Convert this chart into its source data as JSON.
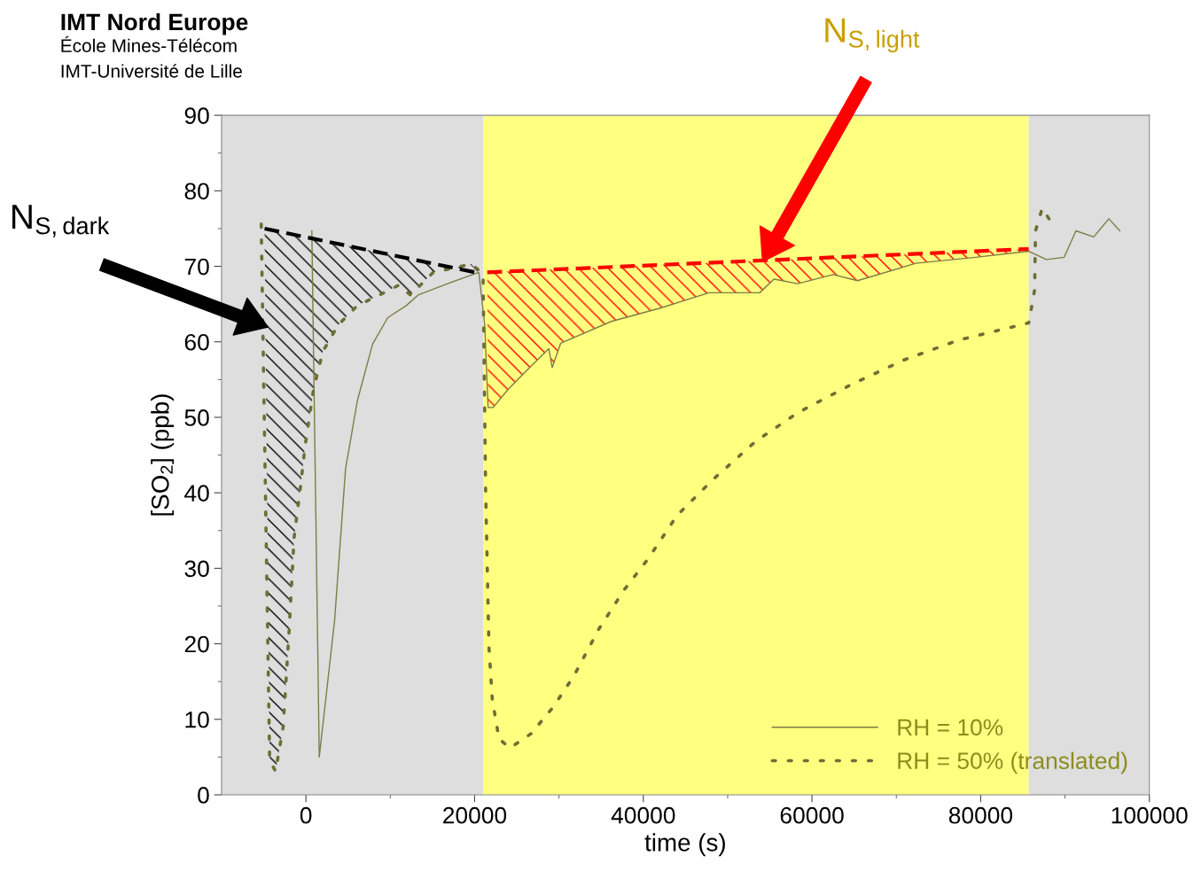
{
  "chart_data": {
    "type": "line",
    "xlabel": "time (s)",
    "ylabel": "[SO$_{2}$] (ppb)",
    "xlim": [
      -10000,
      100000
    ],
    "xticks": [
      0,
      20000,
      40000,
      60000,
      80000,
      100000
    ],
    "ylim": [
      0,
      90
    ],
    "yticks": [
      0,
      10,
      20,
      30,
      40,
      50,
      60,
      70,
      80,
      90
    ],
    "grid": false,
    "legend": "bottom right",
    "series": [
      {
        "name": "RH = 10%",
        "color": "#7d7d45",
        "line_style": "solid",
        "x": [
          700,
          1580,
          3400,
          4700,
          6100,
          7900,
          9700,
          11900,
          13300,
          16800,
          20500,
          21200,
          21600,
          22200,
          23900,
          26000,
          28800,
          29200,
          30200,
          36200,
          41800,
          47800,
          53800,
          55500,
          58300,
          62500,
          65400,
          72300,
          79400,
          85700,
          87800,
          89900,
          91300,
          93400,
          95200,
          96500
        ],
        "values": [
          74.7,
          5.0,
          23.1,
          43.2,
          52.2,
          59.7,
          63.2,
          64.8,
          66.2,
          67.7,
          69.2,
          62.2,
          51.3,
          51.3,
          53.6,
          56.0,
          59.1,
          56.6,
          59.8,
          62.7,
          64.4,
          66.5,
          66.5,
          68.3,
          67.7,
          68.9,
          68.1,
          70.4,
          71.2,
          72.0,
          70.9,
          71.2,
          74.7,
          73.9,
          76.3,
          74.7
        ]
      },
      {
        "name": "RH = 50% (translated)",
        "color": "#6e6e35",
        "line_style": "dotted",
        "x": [
          -5300,
          -4300,
          -3600,
          -2700,
          -2000,
          -1400,
          -600,
          -100,
          900,
          2000,
          3800,
          6100,
          8700,
          11000,
          12400,
          15100,
          19600,
          21000,
          21300,
          21700,
          22100,
          22900,
          24200,
          26700,
          29300,
          31800,
          34700,
          37700,
          40600,
          44000,
          48200,
          53300,
          58300,
          64600,
          70900,
          77300,
          85700,
          86400,
          86500,
          87300,
          88100
        ],
        "values": [
          75.6,
          4.6,
          3.1,
          9.0,
          21.6,
          34.1,
          41.2,
          46.2,
          53.7,
          58.7,
          62.2,
          64.8,
          66.2,
          67.5,
          66.2,
          69.2,
          70.3,
          69.0,
          40.7,
          19.6,
          12.6,
          7.4,
          6.2,
          8.1,
          11.6,
          15.8,
          21.9,
          27.1,
          31.3,
          37.0,
          41.7,
          46.8,
          50.6,
          54.3,
          57.6,
          60.2,
          62.5,
          66.9,
          74.7,
          77.7,
          76.3
        ]
      },
      {
        "color": "#000000",
        "line_style": "dashed",
        "x": [
          -4900,
          20500
        ],
        "values": [
          75.0,
          69.1
        ]
      },
      {
        "color": "#ff0000",
        "line_style": "dashed",
        "x": [
          21500,
          85700
        ],
        "values": [
          69.2,
          72.3
        ]
      }
    ],
    "bands": [
      {
        "axis": "x",
        "from": -10000,
        "to": 21000,
        "color": "#dedede"
      },
      {
        "axis": "x",
        "from": 21000,
        "to": 85700,
        "color": "#ffff80"
      },
      {
        "axis": "x",
        "from": 85700,
        "to": 100000,
        "color": "#dedede"
      }
    ],
    "annotations": [
      "IMT Nord Europe",
      "École Mines-Télécom",
      "IMT-Université de Lille",
      "N$_{S,dark}$",
      "N$_{S,light}$"
    ]
  }
}
